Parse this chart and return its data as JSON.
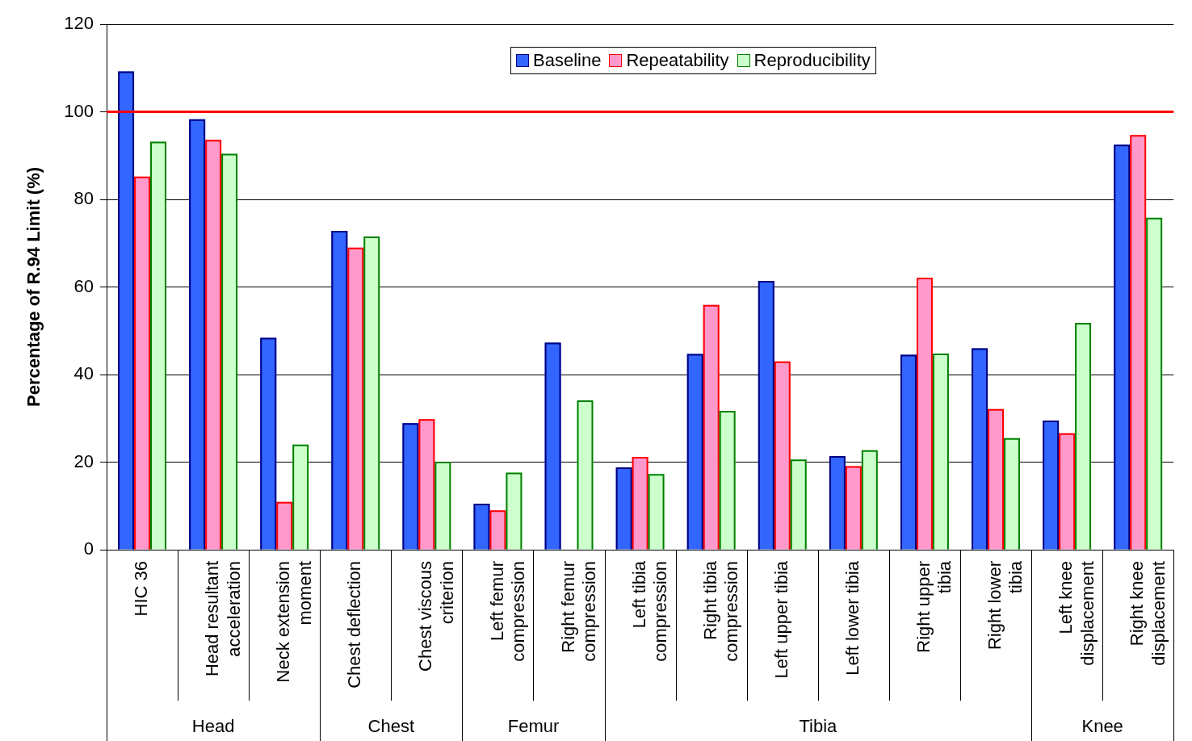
{
  "chart_data": {
    "type": "bar",
    "ylabel": "Percentage of R.94 Limit (%)",
    "categories": [
      "HIC 36",
      "Head resultant acceleration",
      "Neck extension moment",
      "Chest deflection",
      "Chest viscous criterion",
      "Left femur compression",
      "Right femur compression",
      "Left tibia compression",
      "Right tibia compression",
      "Left upper tibia",
      "Left lower tibia",
      "Right upper tibia",
      "Right lower tibia",
      "Left knee displacement",
      "Right knee displacement"
    ],
    "series": [
      {
        "name": "Baseline",
        "color": "#3366ff",
        "values": [
          109.2,
          98.3,
          48.4,
          72.8,
          28.9,
          10.5,
          47.3,
          18.8,
          44.7,
          61.4,
          21.4,
          44.5,
          46.0,
          29.5,
          92.5
        ]
      },
      {
        "name": "Repeatability",
        "color": "#ff99cc",
        "values": [
          85.2,
          93.6,
          10.9,
          69.0,
          29.8,
          9.0,
          null,
          21.2,
          55.9,
          43.0,
          19.1,
          62.1,
          32.1,
          26.6,
          94.7
        ]
      },
      {
        "name": "Reproducibility",
        "color": "#ccffcc",
        "values": [
          93.2,
          90.4,
          24.0,
          71.5,
          20.1,
          17.6,
          34.1,
          17.3,
          31.7,
          20.6,
          22.7,
          44.8,
          25.5,
          51.8,
          75.8
        ]
      }
    ],
    "ylim": [
      0,
      120
    ],
    "yticks": [
      0,
      20,
      40,
      60,
      80,
      100,
      120
    ],
    "grid": "y",
    "legend": "top",
    "ref_lines": [
      {
        "axis": "y",
        "value": 100,
        "color": "#ff0000"
      }
    ],
    "annotations": [
      "Head",
      "Chest",
      "Femur",
      "Tibia",
      "Knee"
    ]
  }
}
